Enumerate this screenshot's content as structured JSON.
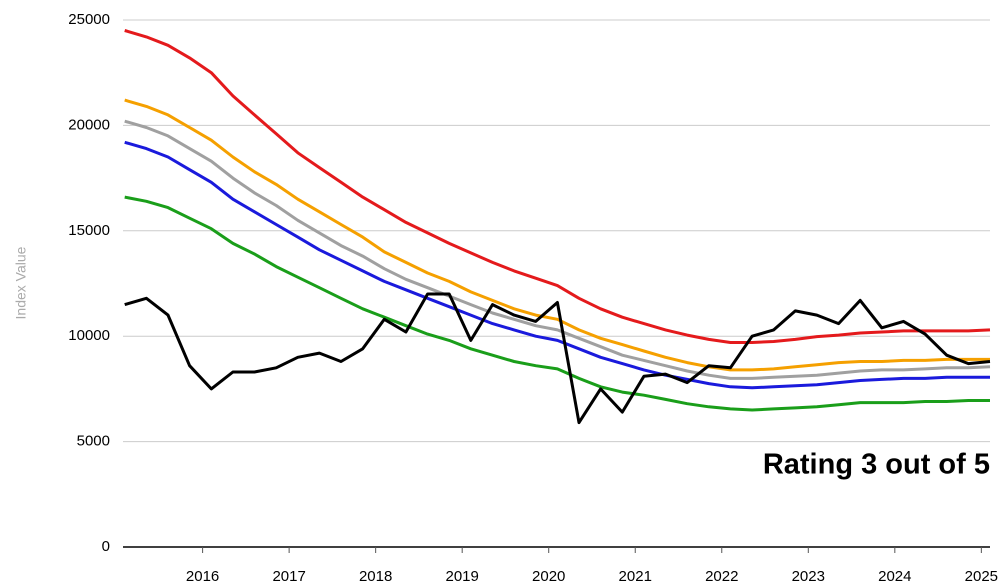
{
  "chart_data": {
    "type": "line",
    "y_label": "Index Value",
    "annotation": "Rating 3 out of 5",
    "x": [
      2015.1,
      2015.35,
      2015.6,
      2015.85,
      2016.1,
      2016.35,
      2016.6,
      2016.85,
      2017.1,
      2017.35,
      2017.6,
      2017.85,
      2018.1,
      2018.35,
      2018.6,
      2018.85,
      2019.1,
      2019.35,
      2019.6,
      2019.85,
      2020.1,
      2020.35,
      2020.6,
      2020.85,
      2021.1,
      2021.35,
      2021.6,
      2021.85,
      2022.1,
      2022.35,
      2022.6,
      2022.85,
      2023.1,
      2023.35,
      2023.6,
      2023.85,
      2024.1,
      2024.35,
      2024.6,
      2024.85,
      2025.1
    ],
    "series": [
      {
        "color": "#e41a1c",
        "values": [
          24500,
          24200,
          23800,
          23200,
          22500,
          21400,
          20500,
          19600,
          18700,
          18000,
          17300,
          16600,
          16000,
          15400,
          14900,
          14400,
          13950,
          13500,
          13100,
          12750,
          12400,
          11800,
          11300,
          10900,
          10600,
          10300,
          10050,
          9850,
          9700,
          9700,
          9750,
          9850,
          9980,
          10050,
          10150,
          10200,
          10250,
          10250,
          10250,
          10250,
          10300
        ]
      },
      {
        "color": "#f5a000",
        "values": [
          21200,
          20900,
          20500,
          19900,
          19300,
          18500,
          17800,
          17200,
          16500,
          15900,
          15300,
          14700,
          14000,
          13500,
          13000,
          12600,
          12100,
          11700,
          11300,
          11000,
          10800,
          10300,
          9900,
          9600,
          9300,
          9000,
          8750,
          8550,
          8400,
          8400,
          8450,
          8550,
          8650,
          8750,
          8800,
          8800,
          8850,
          8850,
          8900,
          8900,
          8900
        ]
      },
      {
        "color": "#a0a0a0",
        "values": [
          20200,
          19900,
          19500,
          18900,
          18300,
          17500,
          16800,
          16200,
          15500,
          14900,
          14300,
          13800,
          13200,
          12700,
          12300,
          11900,
          11500,
          11100,
          10800,
          10500,
          10300,
          9900,
          9500,
          9100,
          8850,
          8600,
          8350,
          8150,
          8000,
          8000,
          8050,
          8100,
          8150,
          8250,
          8350,
          8400,
          8400,
          8450,
          8500,
          8500,
          8550
        ]
      },
      {
        "color": "#1a1adc",
        "values": [
          19200,
          18900,
          18500,
          17900,
          17300,
          16500,
          15900,
          15300,
          14700,
          14100,
          13600,
          13100,
          12600,
          12200,
          11800,
          11400,
          11000,
          10600,
          10300,
          10000,
          9800,
          9400,
          9000,
          8700,
          8400,
          8150,
          7950,
          7750,
          7600,
          7550,
          7600,
          7650,
          7700,
          7800,
          7900,
          7950,
          8000,
          8000,
          8050,
          8050,
          8050
        ]
      },
      {
        "color": "#1a9e1a",
        "values": [
          16600,
          16400,
          16100,
          15600,
          15100,
          14400,
          13900,
          13300,
          12800,
          12300,
          11800,
          11300,
          10900,
          10500,
          10100,
          9800,
          9400,
          9100,
          8800,
          8600,
          8450,
          8000,
          7600,
          7350,
          7200,
          7000,
          6800,
          6650,
          6550,
          6500,
          6550,
          6600,
          6650,
          6750,
          6850,
          6850,
          6850,
          6900,
          6900,
          6950,
          6950
        ]
      },
      {
        "color": "#000000",
        "values": [
          11500,
          11800,
          11000,
          8600,
          7500,
          8300,
          8300,
          8500,
          9000,
          9200,
          8800,
          9400,
          10800,
          10200,
          12000,
          12000,
          9800,
          11500,
          11000,
          10700,
          11600,
          5900,
          7500,
          6400,
          8100,
          8200,
          7800,
          8600,
          8500,
          10000,
          10300,
          11200,
          11000,
          10600,
          11700,
          10400,
          10700,
          10100,
          9100,
          8700,
          8800
        ]
      }
    ],
    "xlim": [
      2015.08,
      2025.1
    ],
    "xticks": [
      2016,
      2017,
      2018,
      2019,
      2020,
      2021,
      2022,
      2023,
      2024,
      2025
    ],
    "ylim": [
      0,
      25000
    ],
    "yticks": [
      0,
      5000,
      10000,
      15000,
      20000,
      25000
    ],
    "grid": true
  }
}
